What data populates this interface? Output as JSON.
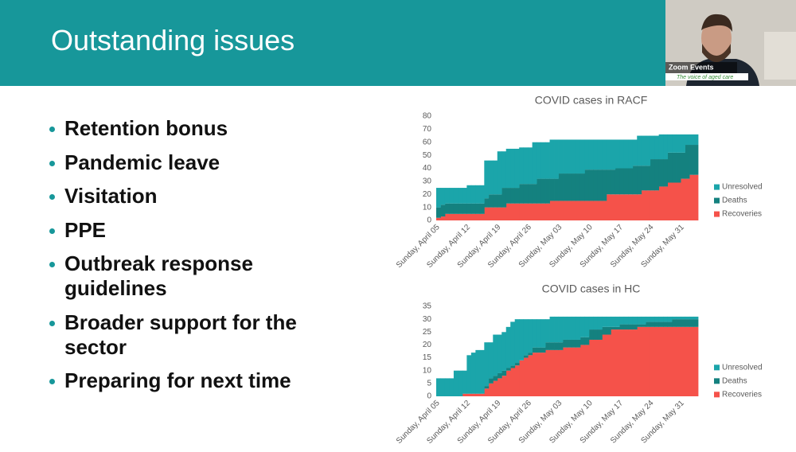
{
  "slide": {
    "title": "Outstanding issues",
    "bullets": [
      "Retention bonus",
      "Pandemic leave",
      "Visitation",
      "PPE",
      "Outbreak response guidelines",
      "Broader support for the sector",
      "Preparing for next time"
    ]
  },
  "video": {
    "label": "Zoom Events",
    "tagline": "The voice of aged care"
  },
  "chart_data": [
    {
      "type": "area",
      "stacked": true,
      "title": "COVID cases in RACF",
      "categories": [
        "Sunday, April 05",
        null,
        null,
        null,
        null,
        null,
        null,
        "Sunday, April 12",
        null,
        null,
        null,
        null,
        null,
        null,
        "Sunday, April 19",
        null,
        null,
        null,
        null,
        null,
        null,
        "Sunday, April 26",
        null,
        null,
        null,
        null,
        null,
        null,
        "Sunday, May 03",
        null,
        null,
        null,
        null,
        null,
        null,
        "Sunday, May 10",
        null,
        null,
        null,
        null,
        null,
        null,
        "Sunday, May 17",
        null,
        null,
        null,
        null,
        null,
        null,
        "Sunday, May 24",
        null,
        null,
        null,
        null,
        null,
        null,
        "Sunday, May 31",
        null,
        null,
        null
      ],
      "ylim": [
        0,
        80
      ],
      "yticks": [
        0,
        10,
        20,
        30,
        40,
        50,
        60,
        70,
        80
      ],
      "grid": false,
      "legend": "right",
      "series": [
        {
          "name": "Unresolved",
          "color": "#1ba5aa",
          "values": [
            15,
            13,
            12,
            12,
            12,
            12,
            12,
            14,
            14,
            14,
            14,
            29,
            26,
            26,
            33,
            28,
            30,
            30,
            30,
            28,
            28,
            28,
            32,
            28,
            28,
            28,
            30,
            30,
            26,
            26,
            26,
            26,
            26,
            26,
            23,
            23,
            23,
            23,
            23,
            23,
            23,
            22,
            22,
            22,
            22,
            20,
            23,
            23,
            23,
            18,
            18,
            19,
            19,
            14,
            14,
            14,
            14,
            8,
            8,
            8
          ]
        },
        {
          "name": "Deaths",
          "color": "#14817f",
          "values": [
            8,
            9,
            8,
            8,
            8,
            8,
            8,
            8,
            8,
            8,
            8,
            7,
            10,
            10,
            10,
            15,
            12,
            12,
            12,
            15,
            15,
            15,
            15,
            19,
            19,
            19,
            17,
            17,
            21,
            21,
            21,
            21,
            21,
            21,
            24,
            24,
            24,
            24,
            24,
            19,
            19,
            20,
            20,
            20,
            20,
            22,
            22,
            19,
            19,
            24,
            24,
            21,
            21,
            23,
            23,
            23,
            20,
            26,
            23,
            23
          ]
        },
        {
          "name": "Recoveries",
          "color": "#f5524a",
          "values": [
            2,
            3,
            5,
            5,
            5,
            5,
            5,
            5,
            5,
            5,
            5,
            10,
            10,
            10,
            10,
            10,
            13,
            13,
            13,
            13,
            13,
            13,
            13,
            13,
            13,
            13,
            15,
            15,
            15,
            15,
            15,
            15,
            15,
            15,
            15,
            15,
            15,
            15,
            15,
            20,
            20,
            20,
            20,
            20,
            20,
            20,
            20,
            23,
            23,
            23,
            23,
            26,
            26,
            29,
            29,
            29,
            32,
            32,
            35,
            35
          ]
        }
      ]
    },
    {
      "type": "area",
      "stacked": true,
      "title": "COVID cases in HC",
      "categories": [
        "Sunday, April 05",
        null,
        null,
        null,
        null,
        null,
        null,
        "Sunday, April 12",
        null,
        null,
        null,
        null,
        null,
        null,
        "Sunday, April 19",
        null,
        null,
        null,
        null,
        null,
        null,
        "Sunday, April 26",
        null,
        null,
        null,
        null,
        null,
        null,
        "Sunday, May 03",
        null,
        null,
        null,
        null,
        null,
        null,
        "Sunday, May 10",
        null,
        null,
        null,
        null,
        null,
        null,
        "Sunday, May 17",
        null,
        null,
        null,
        null,
        null,
        null,
        "Sunday, May 24",
        null,
        null,
        null,
        null,
        null,
        null,
        "Sunday, May 31",
        null,
        null,
        null
      ],
      "ylim": [
        0,
        35
      ],
      "yticks": [
        0,
        5,
        10,
        15,
        20,
        25,
        30,
        35
      ],
      "grid": false,
      "legend": "right",
      "series": [
        {
          "name": "Unresolved",
          "color": "#1ba5aa",
          "values": [
            7,
            7,
            7,
            7,
            10,
            10,
            9,
            15,
            16,
            17,
            17,
            17,
            14,
            16,
            15,
            15,
            16,
            17,
            17,
            16,
            14,
            13,
            11,
            11,
            11,
            9,
            10,
            10,
            10,
            9,
            9,
            9,
            9,
            8,
            8,
            5,
            5,
            5,
            4,
            4,
            4,
            4,
            3,
            3,
            3,
            3,
            3,
            3,
            2,
            2,
            2,
            2,
            2,
            2,
            1,
            1,
            1,
            1,
            1,
            1
          ]
        },
        {
          "name": "Deaths",
          "color": "#14817f",
          "values": [
            0,
            0,
            0,
            0,
            0,
            0,
            0,
            0,
            0,
            0,
            0,
            1,
            2,
            2,
            2,
            2,
            1,
            1,
            1,
            0,
            1,
            1,
            2,
            2,
            2,
            3,
            3,
            3,
            3,
            3,
            3,
            3,
            3,
            3,
            3,
            4,
            4,
            4,
            3,
            3,
            1,
            1,
            2,
            2,
            2,
            2,
            1,
            1,
            2,
            2,
            2,
            2,
            2,
            2,
            3,
            3,
            3,
            3,
            3,
            3
          ]
        },
        {
          "name": "Recoveries",
          "color": "#f5524a",
          "values": [
            0,
            0,
            0,
            0,
            0,
            0,
            1,
            1,
            1,
            1,
            1,
            3,
            5,
            6,
            7,
            8,
            10,
            11,
            12,
            14,
            15,
            16,
            17,
            17,
            17,
            18,
            18,
            18,
            18,
            19,
            19,
            19,
            19,
            20,
            20,
            22,
            22,
            22,
            24,
            24,
            26,
            26,
            26,
            26,
            26,
            26,
            27,
            27,
            27,
            27,
            27,
            27,
            27,
            27,
            27,
            27,
            27,
            27,
            27,
            27
          ]
        }
      ]
    }
  ]
}
